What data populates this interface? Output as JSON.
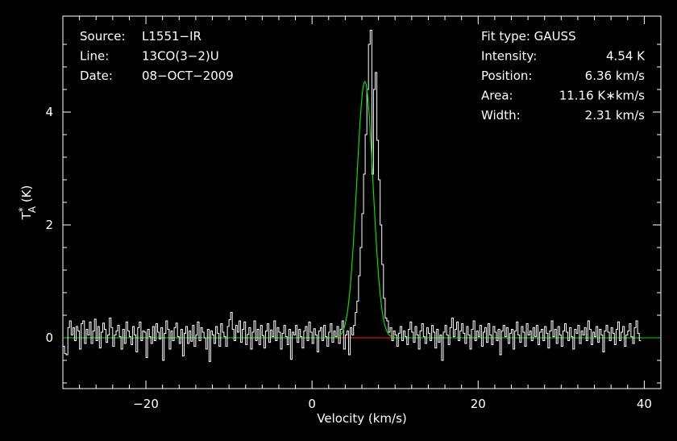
{
  "chart_data": {
    "type": "line",
    "xlabel": "Velocity (km/s)",
    "ylabel_main": "T",
    "ylabel_sup": "*",
    "ylabel_sub": "A",
    "ylabel_unit": "(K)",
    "xlim": [
      -30,
      42
    ],
    "ylim": [
      -0.9,
      5.7
    ],
    "xticks": [
      -20,
      0,
      20,
      40
    ],
    "xtick_labels": [
      "−20",
      "0",
      "20",
      "40"
    ],
    "yticks": [
      0,
      2,
      4
    ],
    "ytick_labels": [
      "0",
      "2",
      "4"
    ],
    "grid": false,
    "colors": {
      "background": "#000000",
      "spectrum": "#ffffff",
      "fit": "#00e000",
      "fit_range": "#ff2020",
      "axes": "#ffffff"
    },
    "info_left": [
      {
        "key": "Source:",
        "value": "L1551−IR"
      },
      {
        "key": "Line:",
        "value": "13CO(3−2)U"
      },
      {
        "key": "Date:",
        "value": "08−OCT−2009"
      }
    ],
    "fit_header": "Fit type: GAUSS",
    "fit_params": [
      {
        "key": "Intensity:",
        "value": "4.54 K"
      },
      {
        "key": "Position:",
        "value": "6.36 km/s"
      },
      {
        "key": "Area:",
        "value": "11.16 K∗km/s"
      },
      {
        "key": "Width:",
        "value": "2.31 km/s"
      }
    ],
    "fit": {
      "model": "gaussian",
      "amplitude_K": 4.54,
      "center_kms": 6.36,
      "fwhm_kms": 2.31,
      "range_kms": [
        3.0,
        10.0
      ]
    },
    "spectrum": {
      "description_values_only": true,
      "x_start": -30,
      "x_step": 0.2,
      "y": [
        -0.15,
        -0.28,
        -0.3,
        0.18,
        0.3,
        0.05,
        0.18,
        -0.05,
        0.2,
        0.12,
        -0.2,
        0.25,
        0.3,
        -0.1,
        0.15,
        0.05,
        0.28,
        -0.1,
        0.12,
        0.33,
        -0.05,
        0.2,
        -0.18,
        0.1,
        0.26,
        0.15,
        -0.08,
        0.05,
        0.35,
        0.18,
        -0.15,
        0.05,
        0.12,
        0.22,
        0.02,
        -0.2,
        0.15,
        -0.1,
        0.28,
        0.12,
        0.02,
        -0.12,
        0.2,
        0.05,
        -0.25,
        0.18,
        0.28,
        -0.05,
        0.12,
        0.1,
        -0.35,
        0.15,
        0.02,
        -0.1,
        0.2,
        -0.05,
        0.25,
        0.1,
        -0.02,
        0.18,
        -0.4,
        0.08,
        0.3,
        0.15,
        -0.2,
        0.12,
        -0.05,
        0.18,
        0.26,
        0.02,
        -0.1,
        0.15,
        -0.32,
        0.08,
        0.2,
        -0.1,
        0.12,
        -0.06,
        0.22,
        -0.15,
        0.05,
        0.28,
        -0.05,
        0.18,
        0.1,
        0.0,
        -0.2,
        0.15,
        -0.42,
        0.12,
        0.05,
        -0.1,
        0.2,
        0.08,
        -0.15,
        0.25,
        0.1,
        0.02,
        -0.15,
        0.2,
        0.32,
        0.45,
        0.15,
        -0.05,
        0.22,
        0.1,
        0.3,
        -0.08,
        0.15,
        0.28,
        -0.12,
        0.06,
        0.18,
        -0.2,
        0.1,
        0.3,
        -0.05,
        0.15,
        -0.12,
        0.22,
        0.04,
        -0.18,
        0.12,
        0.25,
        -0.08,
        0.14,
        0.02,
        0.3,
        -0.05,
        0.18,
        0.1,
        -0.2,
        0.08,
        0.22,
        0.02,
        -0.12,
        0.15,
        -0.38,
        0.1,
        0.05,
        0.22,
        -0.08,
        0.15,
        0.02,
        -0.18,
        0.12,
        0.2,
        -0.05,
        0.28,
        0.1,
        -0.1,
        0.16,
        0.05,
        -0.25,
        0.12,
        0.18,
        -0.05,
        0.22,
        0.02,
        -0.15,
        0.1,
        0.25,
        -0.08,
        0.12,
        0.02,
        0.2,
        -0.1,
        0.15,
        0.3,
        -0.2,
        0.05,
        0.12,
        -0.3,
        0.18,
        0.05,
        0.22,
        0.45,
        0.65,
        1.1,
        1.6,
        2.2,
        2.9,
        3.6,
        4.4,
        5.2,
        5.45,
        2.9,
        4.4,
        4.7,
        3.5,
        2.8,
        2.0,
        1.3,
        0.7,
        0.35,
        0.3,
        0.1,
        0.18,
        -0.05,
        0.12,
        0.05,
        -0.15,
        0.08,
        0.2,
        -0.05,
        0.12,
        0.02,
        -0.12,
        0.15,
        0.28,
        0.1,
        -0.08,
        0.2,
        0.05,
        -0.2,
        0.12,
        0.25,
        0.02,
        -0.1,
        0.18,
        0.08,
        -0.05,
        0.22,
        0.1,
        -0.18,
        0.15,
        -0.08,
        0.05,
        -0.4,
        0.1,
        0.22,
        0.05,
        -0.12,
        0.18,
        0.35,
        0.02,
        0.15,
        0.28,
        -0.05,
        0.12,
        0.25,
        0.08,
        -0.1,
        0.2,
        0.05,
        -0.2,
        0.15,
        0.3,
        -0.05,
        0.12,
        0.02,
        0.22,
        -0.15,
        0.1,
        0.18,
        -0.08,
        0.25,
        0.05,
        -0.12,
        0.2,
        0.1,
        -0.05,
        0.15,
        -0.3,
        0.12,
        0.22,
        0.02,
        0.18,
        -0.1,
        0.08,
        0.15,
        -0.2,
        0.12,
        0.28,
        0.05,
        -0.08,
        0.2,
        0.1,
        -0.15,
        0.25,
        0.05,
        0.12,
        -0.05,
        0.18,
        0.02,
        0.22,
        -0.12,
        0.1,
        0.15,
        -0.05,
        0.2,
        0.08,
        -0.18,
        0.12,
        0.3,
        0.02,
        0.15,
        -0.1,
        0.2,
        0.05,
        -0.15,
        0.12,
        0.25,
        0.1,
        -0.05,
        0.18,
        0.02,
        -0.2,
        0.15,
        0.08,
        0.22,
        -0.1,
        0.12,
        0.05,
        0.18,
        -0.05,
        0.3,
        0.15,
        -0.12,
        0.1,
        0.02,
        0.2,
        -0.08,
        0.15,
        0.05,
        -0.25,
        0.12,
        0.22,
        0.1,
        -0.05,
        0.18,
        0.08,
        -0.12,
        0.15,
        0.28,
        -0.05,
        0.1,
        0.2,
        -0.15,
        0.05,
        0.12,
        0.25,
        0.02,
        -0.1,
        0.18,
        0.3,
        0.08,
        -0.05
      ]
    }
  }
}
